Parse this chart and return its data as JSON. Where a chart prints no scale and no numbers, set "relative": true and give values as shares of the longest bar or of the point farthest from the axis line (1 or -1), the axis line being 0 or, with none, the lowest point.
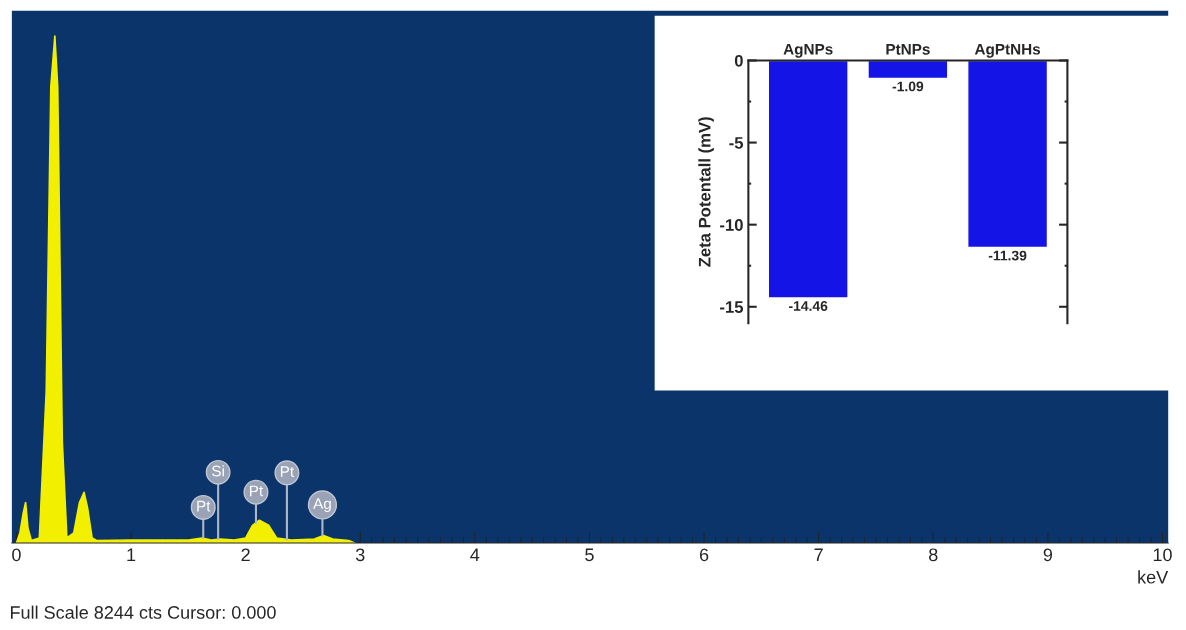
{
  "chart_data": [
    {
      "type": "area",
      "relative": true,
      "xlabel": "keV",
      "color": "#f2f000",
      "x": [
        0,
        0.03,
        0.06,
        0.08,
        0.1,
        0.13,
        0.2,
        0.26,
        0.3,
        0.335,
        0.36,
        0.4,
        0.44,
        0.5,
        0.55,
        0.59,
        0.62,
        0.66,
        0.7,
        1.0,
        1.5,
        1.62,
        1.7,
        1.78,
        1.9,
        2.0,
        2.06,
        2.12,
        2.2,
        2.27,
        2.4,
        2.6,
        2.68,
        2.76,
        2.9,
        2.95
      ],
      "values": [
        0,
        0.02,
        0.06,
        0.08,
        0.03,
        0.005,
        0.01,
        0.3,
        0.9,
        1.0,
        0.9,
        0.2,
        0.01,
        0.02,
        0.08,
        0.1,
        0.07,
        0.01,
        0.005,
        0.006,
        0.006,
        0.01,
        0.006,
        0.008,
        0.006,
        0.01,
        0.035,
        0.045,
        0.035,
        0.01,
        0.006,
        0.008,
        0.015,
        0.008,
        0.005,
        0
      ],
      "xlim": [
        -0.04,
        10.05
      ],
      "xticks": [
        0,
        1,
        2,
        3,
        4,
        5,
        6,
        7,
        8,
        9,
        10
      ],
      "annotations": [
        {
          "text": "Pt",
          "x": 1.63,
          "y": 0.01
        },
        {
          "text": "Si",
          "x": 1.76,
          "y": 0.008
        },
        {
          "text": "Pt",
          "x": 2.09,
          "y": 0.04
        },
        {
          "text": "Pt",
          "x": 2.36,
          "y": 0.007
        },
        {
          "text": "Ag",
          "x": 2.67,
          "y": 0.015
        },
        "Full Scale 8244 cts Cursor: 0.000"
      ],
      "grid": false
    },
    {
      "type": "bar",
      "categories": [
        "AgNPs",
        "PtNPs",
        "AgPtNHs"
      ],
      "values": [
        -14.46,
        -1.09,
        -11.39
      ],
      "color": "#1414e6",
      "ylabel": "Zeta Potentall (mV)",
      "ylim": [
        -16,
        0
      ],
      "yticks": [
        0,
        -5,
        -10,
        -15
      ],
      "data_labels": true,
      "grid": false
    }
  ]
}
